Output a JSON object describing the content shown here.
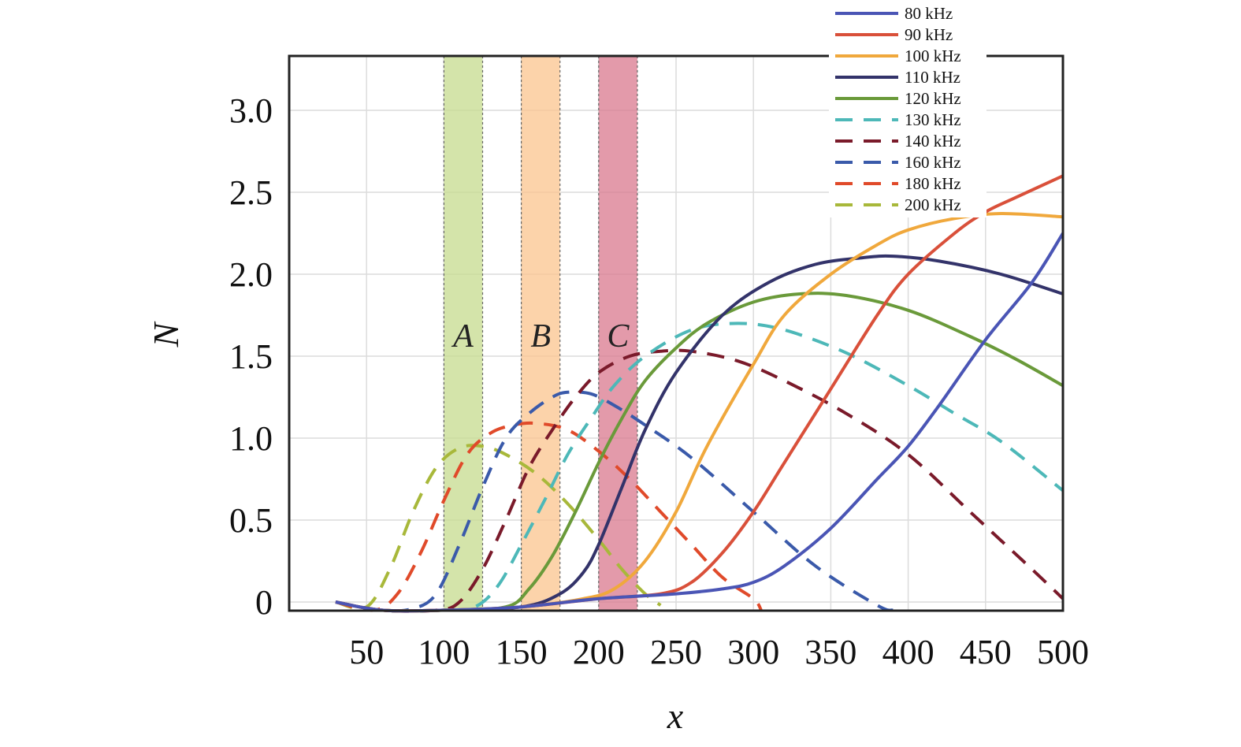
{
  "chart_data": {
    "type": "line",
    "xlabel": "x",
    "ylabel": "N",
    "xlim": [
      0,
      500
    ],
    "ylim": [
      -0.05,
      3.3
    ],
    "xticks": [
      50,
      100,
      150,
      200,
      250,
      300,
      350,
      400,
      450,
      500
    ],
    "yticks": [
      0,
      0.5,
      1.0,
      1.5,
      2.0,
      2.5,
      3.0
    ],
    "ytick_labels": [
      "0",
      "0.5",
      "1.0",
      "1.5",
      "2.0",
      "2.5",
      "3.0"
    ],
    "grid": true,
    "legend_position": "top-right",
    "regions": [
      {
        "label": "A",
        "x_start": 100,
        "x_end": 125,
        "color": "#c5db8e"
      },
      {
        "label": "B",
        "x_start": 150,
        "x_end": 175,
        "color": "#fbc48e"
      },
      {
        "label": "C",
        "x_start": 200,
        "x_end": 225,
        "color": "#d9788e"
      }
    ],
    "series": [
      {
        "name": "80 kHz",
        "style": "solid",
        "color": "#4a55b5",
        "x": [
          30,
          60,
          100,
          150,
          200,
          250,
          280,
          300,
          320,
          350,
          380,
          400,
          420,
          450,
          480,
          500
        ],
        "y": [
          0,
          -0.05,
          -0.05,
          -0.03,
          0.02,
          0.05,
          0.08,
          0.12,
          0.22,
          0.45,
          0.75,
          0.95,
          1.2,
          1.6,
          1.95,
          2.25
        ]
      },
      {
        "name": "90 kHz",
        "style": "solid",
        "color": "#d9503a",
        "x": [
          30,
          60,
          100,
          150,
          200,
          240,
          260,
          280,
          300,
          320,
          350,
          380,
          400,
          430,
          450,
          470,
          500
        ],
        "y": [
          0,
          -0.05,
          -0.05,
          -0.03,
          0.02,
          0.05,
          0.12,
          0.3,
          0.55,
          0.85,
          1.3,
          1.75,
          2.0,
          2.25,
          2.38,
          2.47,
          2.6
        ]
      },
      {
        "name": "100 kHz",
        "style": "solid",
        "color": "#f0a83c",
        "x": [
          30,
          60,
          100,
          150,
          190,
          210,
          230,
          250,
          270,
          300,
          320,
          350,
          380,
          400,
          430,
          460,
          500
        ],
        "y": [
          0,
          -0.05,
          -0.05,
          -0.03,
          0.02,
          0.08,
          0.25,
          0.55,
          0.95,
          1.45,
          1.75,
          2.0,
          2.18,
          2.27,
          2.34,
          2.37,
          2.35
        ]
      },
      {
        "name": "110 kHz",
        "style": "solid",
        "color": "#33336a",
        "x": [
          30,
          60,
          100,
          150,
          175,
          190,
          200,
          215,
          230,
          250,
          280,
          310,
          340,
          370,
          390,
          420,
          460,
          500
        ],
        "y": [
          0,
          -0.05,
          -0.05,
          -0.03,
          0.05,
          0.18,
          0.35,
          0.7,
          1.05,
          1.4,
          1.75,
          1.95,
          2.06,
          2.1,
          2.11,
          2.08,
          2.0,
          1.88
        ]
      },
      {
        "name": "120 kHz",
        "style": "solid",
        "color": "#6a9a3a",
        "x": [
          30,
          60,
          100,
          140,
          155,
          170,
          185,
          200,
          215,
          230,
          250,
          270,
          300,
          330,
          360,
          400,
          440,
          470,
          500
        ],
        "y": [
          0,
          -0.05,
          -0.05,
          -0.03,
          0.08,
          0.28,
          0.55,
          0.85,
          1.12,
          1.35,
          1.55,
          1.7,
          1.83,
          1.88,
          1.87,
          1.78,
          1.62,
          1.48,
          1.32
        ]
      },
      {
        "name": "130 kHz",
        "style": "dashed",
        "color": "#4db8b8",
        "x": [
          30,
          60,
          100,
          120,
          135,
          150,
          165,
          180,
          195,
          210,
          230,
          260,
          290,
          320,
          360,
          400,
          430,
          460,
          500
        ],
        "y": [
          0,
          -0.05,
          -0.05,
          -0.03,
          0.1,
          0.35,
          0.62,
          0.9,
          1.12,
          1.32,
          1.5,
          1.66,
          1.7,
          1.66,
          1.52,
          1.32,
          1.15,
          0.98,
          0.68
        ]
      },
      {
        "name": "140 kHz",
        "style": "dashed",
        "color": "#7a1a2a",
        "x": [
          30,
          60,
          95,
          110,
          125,
          140,
          155,
          170,
          185,
          200,
          220,
          240,
          260,
          290,
          320,
          360,
          400,
          440,
          480,
          500
        ],
        "y": [
          0,
          -0.05,
          -0.05,
          0.0,
          0.2,
          0.5,
          0.82,
          1.05,
          1.25,
          1.4,
          1.5,
          1.53,
          1.53,
          1.47,
          1.35,
          1.15,
          0.9,
          0.55,
          0.2,
          0.02
        ]
      },
      {
        "name": "160 kHz",
        "style": "dashed",
        "color": "#3a5aaa",
        "x": [
          30,
          60,
          80,
          95,
          110,
          125,
          140,
          155,
          170,
          180,
          195,
          210,
          230,
          260,
          300,
          340,
          380,
          390
        ],
        "y": [
          0,
          -0.05,
          -0.04,
          0.05,
          0.35,
          0.7,
          1.0,
          1.15,
          1.25,
          1.28,
          1.27,
          1.2,
          1.08,
          0.88,
          0.55,
          0.22,
          -0.02,
          -0.05
        ]
      },
      {
        "name": "180 kHz",
        "style": "dashed",
        "color": "#e04a2a",
        "x": [
          30,
          55,
          70,
          85,
          100,
          115,
          130,
          145,
          160,
          180,
          200,
          220,
          240,
          260,
          280,
          300,
          305
        ],
        "y": [
          0,
          -0.05,
          0.05,
          0.3,
          0.62,
          0.9,
          1.03,
          1.08,
          1.09,
          1.05,
          0.92,
          0.75,
          0.55,
          0.35,
          0.15,
          0.02,
          -0.05
        ]
      },
      {
        "name": "200 kHz",
        "style": "dashed",
        "color": "#a8b83a",
        "x": [
          30,
          50,
          65,
          80,
          95,
          110,
          125,
          140,
          160,
          180,
          200,
          215,
          230,
          240
        ],
        "y": [
          0,
          -0.03,
          0.2,
          0.55,
          0.82,
          0.94,
          0.95,
          0.9,
          0.78,
          0.6,
          0.38,
          0.2,
          0.05,
          -0.02
        ]
      }
    ]
  }
}
